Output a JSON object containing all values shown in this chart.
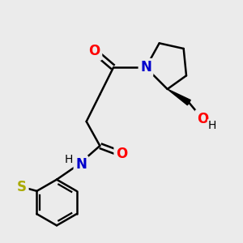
{
  "background_color": "#ebebeb",
  "atom_colors": {
    "C": "#000000",
    "N": "#0000cc",
    "O": "#ff0000",
    "S": "#aaaa00",
    "H": "#000000"
  },
  "bond_color": "#000000",
  "bond_width": 1.8,
  "font_size_atoms": 12,
  "font_size_H": 10
}
